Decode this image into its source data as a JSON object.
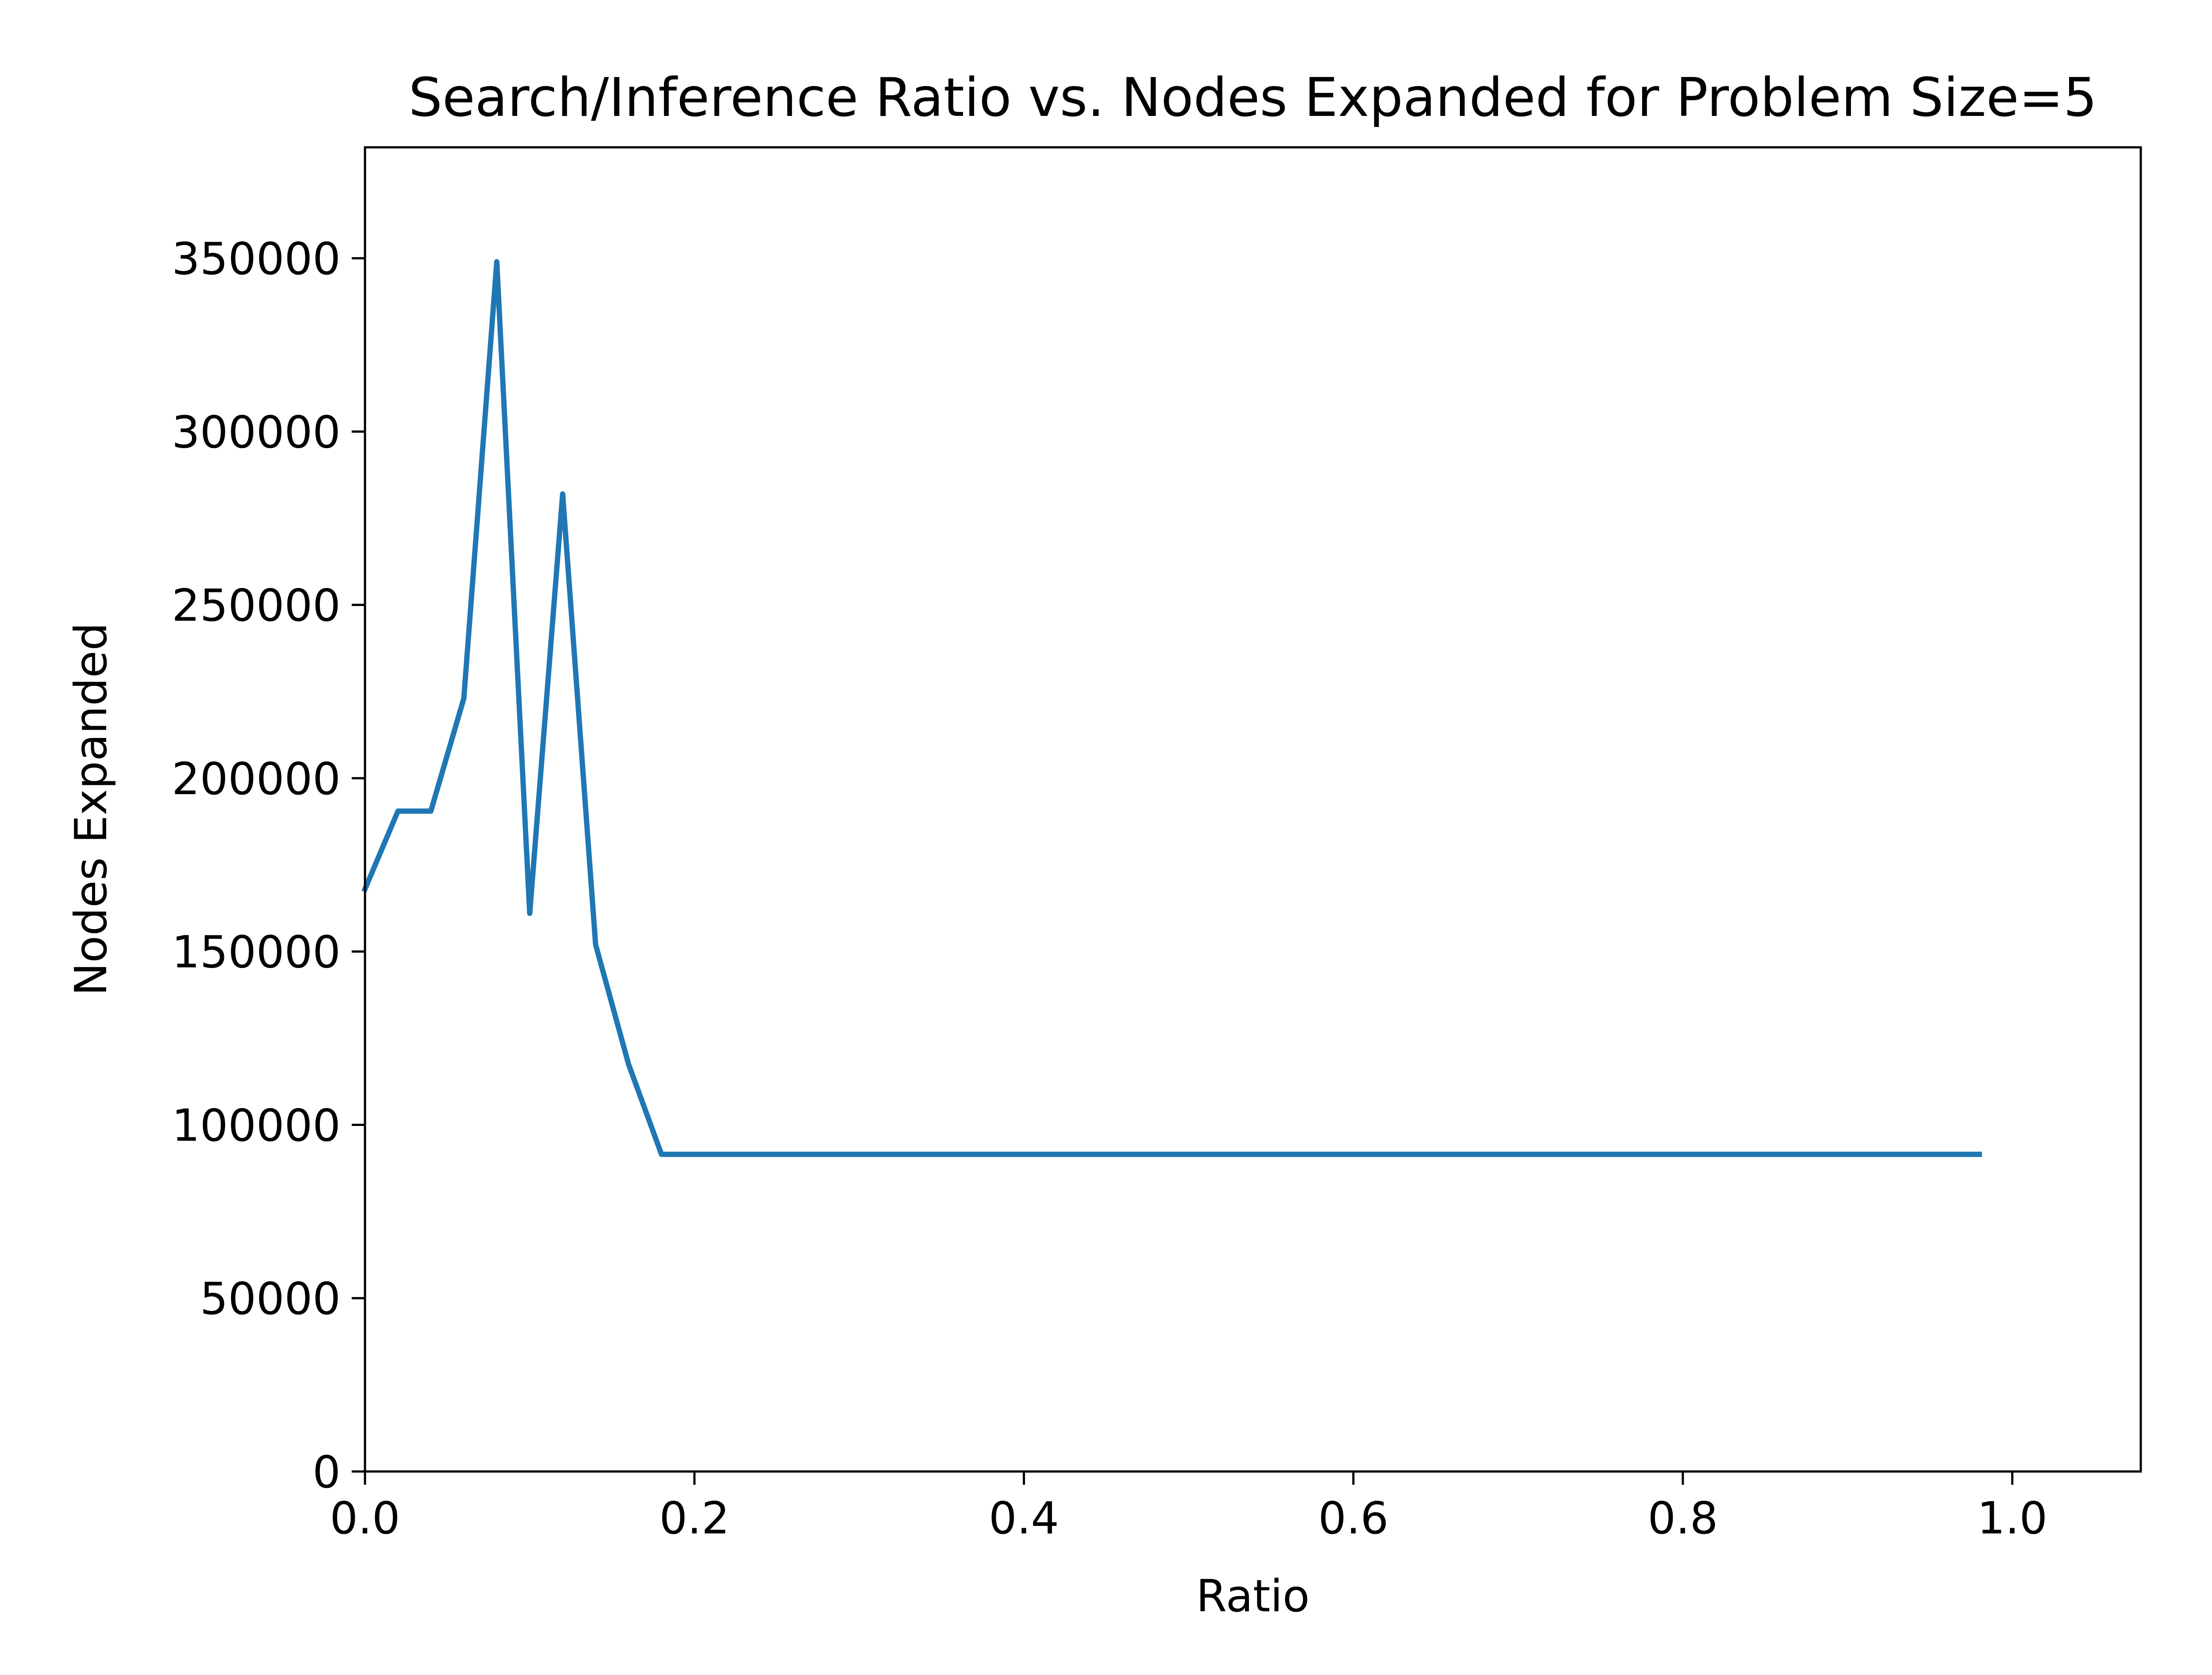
{
  "chart_data": {
    "type": "line",
    "title": "Search/Inference Ratio vs. Nodes Expanded for Problem Size=5",
    "xlabel": "Ratio",
    "ylabel": "Nodes Expanded",
    "xlim": [
      0.0,
      1.078
    ],
    "ylim": [
      0,
      382000
    ],
    "x_ticks": [
      0.0,
      0.2,
      0.4,
      0.6,
      0.8,
      1.0
    ],
    "x_tick_labels": [
      "0.0",
      "0.2",
      "0.4",
      "0.6",
      "0.8",
      "1.0"
    ],
    "y_ticks": [
      0,
      50000,
      100000,
      150000,
      200000,
      250000,
      300000,
      350000
    ],
    "y_tick_labels": [
      "0",
      "50000",
      "100000",
      "150000",
      "200000",
      "250000",
      "300000",
      "350000"
    ],
    "grid": false,
    "legend": "none",
    "series": [
      {
        "color": "#1f77b4",
        "x": [
          0.0,
          0.02,
          0.04,
          0.06,
          0.08,
          0.1,
          0.12,
          0.14,
          0.16,
          0.18,
          0.2,
          0.22,
          0.24,
          0.26,
          0.28,
          0.3,
          0.32,
          0.34,
          0.36,
          0.38,
          0.4,
          0.42,
          0.44,
          0.46,
          0.48,
          0.5,
          0.52,
          0.54,
          0.56,
          0.58,
          0.6,
          0.62,
          0.64,
          0.66,
          0.68,
          0.7,
          0.72,
          0.74,
          0.76,
          0.78,
          0.8,
          0.82,
          0.84,
          0.86,
          0.88,
          0.9,
          0.92,
          0.94,
          0.96,
          0.98
        ],
        "y": [
          168000,
          190500,
          190500,
          223000,
          349000,
          161000,
          282000,
          152000,
          117500,
          91500,
          91500,
          91500,
          91500,
          91500,
          91500,
          91500,
          91500,
          91500,
          91500,
          91500,
          91500,
          91500,
          91500,
          91500,
          91500,
          91500,
          91500,
          91500,
          91500,
          91500,
          91500,
          91500,
          91500,
          91500,
          91500,
          91500,
          91500,
          91500,
          91500,
          91500,
          91500,
          91500,
          91500,
          91500,
          91500,
          91500,
          91500,
          91500,
          91500,
          91500
        ]
      }
    ]
  }
}
